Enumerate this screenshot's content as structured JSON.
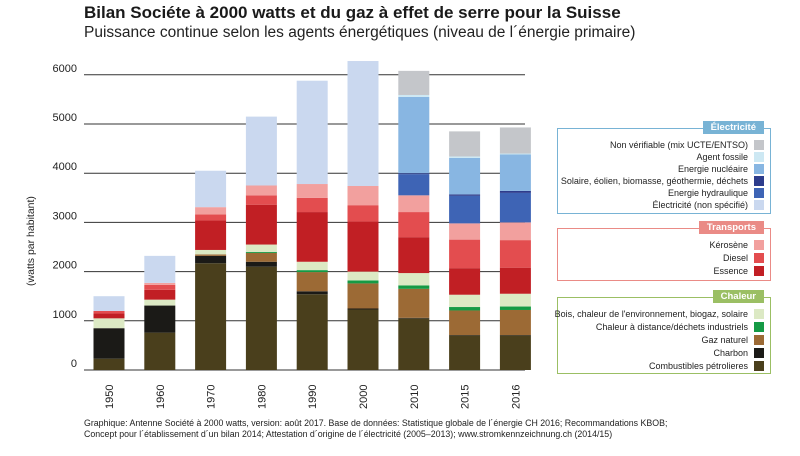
{
  "title": "Bilan Sociéte à 2000 watts et du gaz à effet de serre pour la Suisse",
  "subtitle": "Puissance continue selon les agents énergétiques (niveau de l´énergie primaire)",
  "source": [
    "Graphique: Antenne Société à 2000 watts, version: août 2017. Base de données: Statistique globale de l´énergie CH 2016; Recommandations KBOB;",
    "Concept pour l´établissement d´un bilan 2014; Attestation d´origine de l´électricité (2005–2013); www.stromkennzeichnung.ch (2014/15)"
  ],
  "legend_groups": [
    {
      "title": "Électricité",
      "color": "#78b3d5",
      "items": [
        {
          "label": "Non vérifiable (mix UCTE/ENTSO)",
          "color": "#c4c6ca"
        },
        {
          "label": "Agent fossile",
          "color": "#cde8f3"
        },
        {
          "label": "Energie nucléaire",
          "color": "#88b6e2"
        },
        {
          "label": "Solaire, éolien, biomasse, géothermie, déchets",
          "color": "#2d3c8c"
        },
        {
          "label": "Energie hydraulique",
          "color": "#3e64b5"
        },
        {
          "label": "Électricité (non spécifié)",
          "color": "#cad8ef"
        }
      ]
    },
    {
      "title": "Transports",
      "color": "#ea8b86",
      "items": [
        {
          "label": "Kérosène",
          "color": "#f2a09e"
        },
        {
          "label": "Diesel",
          "color": "#e34d4f"
        },
        {
          "label": "Essence",
          "color": "#c11f24"
        }
      ]
    },
    {
      "title": "Chaleur",
      "color": "#9bbf64",
      "items": [
        {
          "label": "Bois, chaleur de l'environnement, biogaz, solaire",
          "color": "#dce9c4"
        },
        {
          "label": "Chaleur à distance/déchets industriels",
          "color": "#159a45"
        },
        {
          "label": "Gaz naturel",
          "color": "#9c6a35"
        },
        {
          "label": "Charbon",
          "color": "#1b1a17"
        },
        {
          "label": "Combustibles pétrolieres",
          "color": "#4a3f1c"
        }
      ]
    }
  ],
  "chart_data": {
    "type": "bar",
    "stacked": true,
    "categories": [
      "1950",
      "1960",
      "1970",
      "1980",
      "1990",
      "2000",
      "2010",
      "2015",
      "2016"
    ],
    "ylabel": "(watts par habitant)",
    "ylim": [
      0,
      6300
    ],
    "yticks": [
      0,
      1000,
      2000,
      3000,
      4000,
      5000,
      6000
    ],
    "series": [
      {
        "name": "Combustibles pétrolieres",
        "color": "#4a3f1c",
        "values": [
          230,
          760,
          2170,
          2100,
          1540,
          1230,
          1050,
          700,
          700
        ]
      },
      {
        "name": "Charbon",
        "color": "#1b1a17",
        "values": [
          620,
          550,
          150,
          100,
          60,
          20,
          10,
          10,
          10
        ]
      },
      {
        "name": "Gaz naturel",
        "color": "#9c6a35",
        "values": [
          0,
          0,
          30,
          180,
          390,
          510,
          590,
          500,
          510
        ]
      },
      {
        "name": "Chaleur à distance/déchets industriels",
        "color": "#159a45",
        "values": [
          0,
          0,
          0,
          20,
          40,
          60,
          70,
          70,
          70
        ]
      },
      {
        "name": "Bois, chaleur de l'environnement, biogaz, solaire",
        "color": "#dce9c4",
        "values": [
          200,
          120,
          90,
          150,
          170,
          180,
          250,
          250,
          260
        ]
      },
      {
        "name": "Essence",
        "color": "#c11f24",
        "values": [
          100,
          200,
          600,
          810,
          1010,
          1020,
          730,
          540,
          530
        ]
      },
      {
        "name": "Diesel",
        "color": "#e34d4f",
        "values": [
          50,
          100,
          120,
          190,
          290,
          330,
          510,
          580,
          560
        ]
      },
      {
        "name": "Kérosène",
        "color": "#f2a09e",
        "values": [
          0,
          40,
          150,
          200,
          280,
          390,
          340,
          330,
          360
        ]
      },
      {
        "name": "Électricité (non spécifié)",
        "color": "#cad8ef",
        "values": [
          300,
          550,
          740,
          1400,
          2100,
          2540,
          0,
          0,
          0
        ]
      },
      {
        "name": "Energie hydraulique",
        "color": "#3e64b5",
        "values": [
          0,
          0,
          0,
          0,
          0,
          0,
          430,
          560,
          600
        ]
      },
      {
        "name": "Solaire, éolien, biomasse, géothermie, déchets",
        "color": "#2d3c8c",
        "values": [
          0,
          0,
          0,
          0,
          0,
          0,
          20,
          30,
          40
        ]
      },
      {
        "name": "Energie nucléaire",
        "color": "#88b6e2",
        "values": [
          0,
          0,
          0,
          0,
          0,
          0,
          1550,
          740,
          740
        ]
      },
      {
        "name": "Agent fossile",
        "color": "#cde8f3",
        "values": [
          0,
          0,
          0,
          0,
          0,
          0,
          40,
          30,
          20
        ]
      },
      {
        "name": "Non vérifiable (mix UCTE/ENTSO)",
        "color": "#c4c6ca",
        "values": [
          0,
          0,
          0,
          0,
          0,
          0,
          490,
          510,
          530
        ]
      }
    ]
  }
}
